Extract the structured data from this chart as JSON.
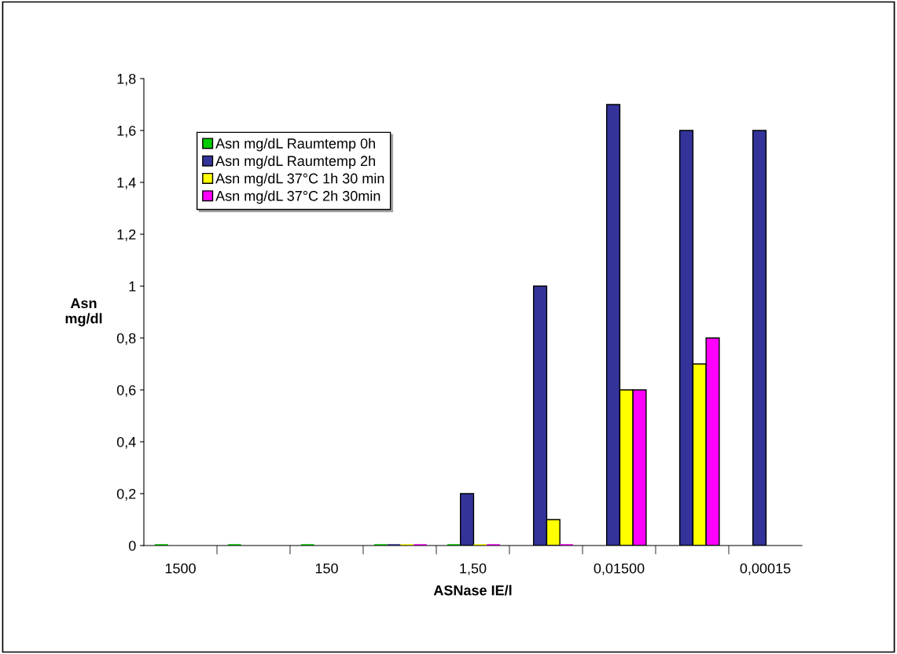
{
  "chart_data": {
    "type": "bar",
    "xlabel": "ASNase IE/l",
    "ylabel": "Asn\nmg/dl",
    "categories": [
      "1500",
      null,
      "150",
      null,
      "1,50",
      null,
      "0,01500",
      null,
      "0,00015"
    ],
    "series": [
      {
        "name": "Asn mg/dL Raumtemp 0h",
        "color": "#00cc00",
        "values": [
          0,
          0,
          0,
          0,
          0,
          null,
          null,
          null,
          null
        ]
      },
      {
        "name": "Asn mg/dL Raumtemp 2h",
        "color": "#333399",
        "values": [
          null,
          null,
          null,
          0,
          0.2,
          1.0,
          1.7,
          1.6,
          1.6
        ]
      },
      {
        "name": "Asn mg/dL 37°C 1h 30 min",
        "color": "#ffff00",
        "values": [
          null,
          null,
          null,
          0,
          0,
          0.1,
          0.6,
          0.7,
          null
        ]
      },
      {
        "name": "Asn mg/dL 37°C 2h 30min",
        "color": "#ff00ff",
        "values": [
          null,
          null,
          null,
          0,
          0,
          0,
          0.6,
          0.8,
          null
        ]
      }
    ],
    "ylim": [
      0,
      1.8
    ],
    "yticks": [
      {
        "value": 0,
        "label": "0"
      },
      {
        "value": 0.2,
        "label": "0,2"
      },
      {
        "value": 0.4,
        "label": "0,4"
      },
      {
        "value": 0.6,
        "label": "0,6"
      },
      {
        "value": 0.8,
        "label": "0,8"
      },
      {
        "value": 1,
        "label": "1"
      },
      {
        "value": 1.2,
        "label": "1,2"
      },
      {
        "value": 1.4,
        "label": "1,4"
      },
      {
        "value": 1.6,
        "label": "1,6"
      },
      {
        "value": 1.8,
        "label": "1,8"
      }
    ],
    "grid": false,
    "legend": "top left"
  }
}
